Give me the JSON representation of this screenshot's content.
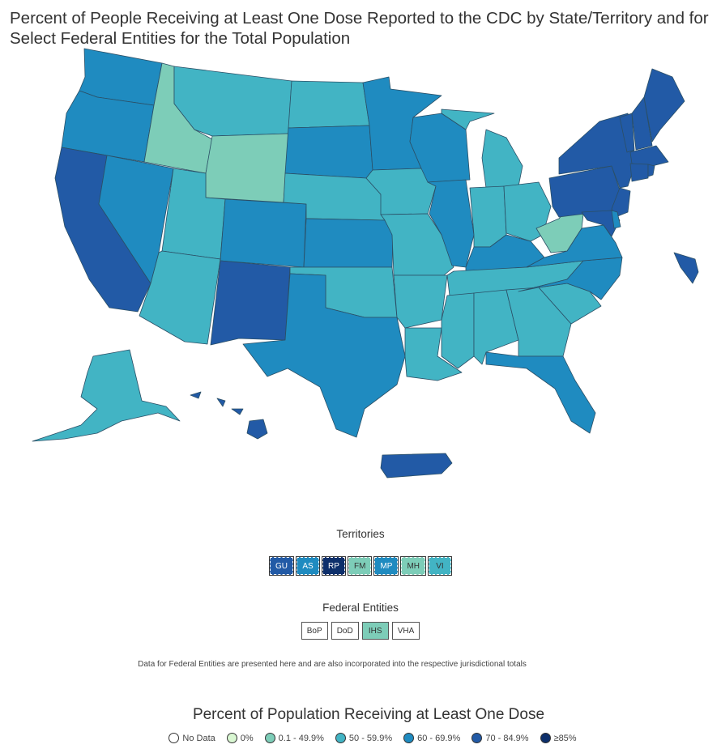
{
  "title": "Percent of People Receiving at Least One Dose Reported to the CDC by State/Territory and for Select Federal Entities for the Total Population",
  "colors": {
    "no_data": "#ffffff",
    "zero": "#d9f7d2",
    "c01_49": "#7dcdb8",
    "c50_59": "#42b4c4",
    "c60_69": "#1f8bc0",
    "c70_84": "#225aa6",
    "c85": "#0d2f6b"
  },
  "territories": {
    "label": "Territories",
    "items": [
      {
        "code": "GU",
        "color": "#225aa6",
        "text_color": "dark"
      },
      {
        "code": "AS",
        "color": "#1f8bc0",
        "text_color": "dark"
      },
      {
        "code": "RP",
        "color": "#0d2f6b",
        "text_color": "dark"
      },
      {
        "code": "FM",
        "color": "#7dcdb8",
        "text_color": "light"
      },
      {
        "code": "MP",
        "color": "#1f8bc0",
        "text_color": "dark"
      },
      {
        "code": "MH",
        "color": "#7dcdb8",
        "text_color": "light"
      },
      {
        "code": "VI",
        "color": "#42b4c4",
        "text_color": "light"
      }
    ]
  },
  "federal_entities": {
    "label": "Federal Entities",
    "items": [
      {
        "code": "BoP",
        "color": "#ffffff"
      },
      {
        "code": "DoD",
        "color": "#ffffff"
      },
      {
        "code": "IHS",
        "color": "#7dcdb8"
      },
      {
        "code": "VHA",
        "color": "#ffffff"
      }
    ]
  },
  "note": "Data for Federal Entities are presented here and are also incorporated into the respective jurisdictional totals",
  "legend": {
    "title": "Percent of Population Receiving at Least One Dose",
    "items": [
      {
        "label": "No Data",
        "color": "#ffffff"
      },
      {
        "label": "0%",
        "color": "#d9f7d2"
      },
      {
        "label": "0.1 - 49.9%",
        "color": "#7dcdb8"
      },
      {
        "label": "50 - 59.9%",
        "color": "#42b4c4"
      },
      {
        "label": "60 - 69.9%",
        "color": "#1f8bc0"
      },
      {
        "label": "70 - 84.9%",
        "color": "#225aa6"
      },
      {
        "label": "≥85%",
        "color": "#0d2f6b"
      }
    ]
  },
  "states": [
    {
      "name": "WA",
      "bin": "60-69.9"
    },
    {
      "name": "OR",
      "bin": "60-69.9"
    },
    {
      "name": "CA",
      "bin": "70-84.9"
    },
    {
      "name": "ID",
      "bin": "0.1-49.9"
    },
    {
      "name": "NV",
      "bin": "60-69.9"
    },
    {
      "name": "MT",
      "bin": "50-59.9"
    },
    {
      "name": "WY",
      "bin": "0.1-49.9"
    },
    {
      "name": "UT",
      "bin": "50-59.9"
    },
    {
      "name": "AZ",
      "bin": "50-59.9"
    },
    {
      "name": "CO",
      "bin": "60-69.9"
    },
    {
      "name": "NM",
      "bin": "70-84.9"
    },
    {
      "name": "ND",
      "bin": "50-59.9"
    },
    {
      "name": "SD",
      "bin": "60-69.9"
    },
    {
      "name": "NE",
      "bin": "50-59.9"
    },
    {
      "name": "KS",
      "bin": "60-69.9"
    },
    {
      "name": "OK",
      "bin": "50-59.9"
    },
    {
      "name": "TX",
      "bin": "60-69.9"
    },
    {
      "name": "MN",
      "bin": "60-69.9"
    },
    {
      "name": "IA",
      "bin": "50-59.9"
    },
    {
      "name": "MO",
      "bin": "50-59.9"
    },
    {
      "name": "AR",
      "bin": "50-59.9"
    },
    {
      "name": "LA",
      "bin": "50-59.9"
    },
    {
      "name": "WI",
      "bin": "60-69.9"
    },
    {
      "name": "IL",
      "bin": "60-69.9"
    },
    {
      "name": "MI",
      "bin": "50-59.9"
    },
    {
      "name": "IN",
      "bin": "50-59.9"
    },
    {
      "name": "OH",
      "bin": "50-59.9"
    },
    {
      "name": "KY",
      "bin": "60-69.9"
    },
    {
      "name": "TN",
      "bin": "50-59.9"
    },
    {
      "name": "MS",
      "bin": "50-59.9"
    },
    {
      "name": "AL",
      "bin": "50-59.9"
    },
    {
      "name": "GA",
      "bin": "50-59.9"
    },
    {
      "name": "FL",
      "bin": "60-69.9"
    },
    {
      "name": "SC",
      "bin": "50-59.9"
    },
    {
      "name": "NC",
      "bin": "60-69.9"
    },
    {
      "name": "VA",
      "bin": "60-69.9"
    },
    {
      "name": "WV",
      "bin": "0.1-49.9"
    },
    {
      "name": "PA",
      "bin": "70-84.9"
    },
    {
      "name": "NY",
      "bin": "70-84.9"
    },
    {
      "name": "NJ",
      "bin": "70-84.9"
    },
    {
      "name": "MD",
      "bin": "70-84.9"
    },
    {
      "name": "DE",
      "bin": "60-69.9"
    },
    {
      "name": "VT",
      "bin": "70-84.9"
    },
    {
      "name": "NH",
      "bin": "70-84.9"
    },
    {
      "name": "ME",
      "bin": "70-84.9"
    },
    {
      "name": "MA",
      "bin": "70-84.9"
    },
    {
      "name": "CT",
      "bin": "70-84.9"
    },
    {
      "name": "RI",
      "bin": "70-84.9"
    },
    {
      "name": "AK",
      "bin": "50-59.9"
    },
    {
      "name": "HI",
      "bin": "70-84.9"
    },
    {
      "name": "PR",
      "bin": "70-84.9"
    },
    {
      "name": "DC",
      "bin": "70-84.9"
    }
  ]
}
